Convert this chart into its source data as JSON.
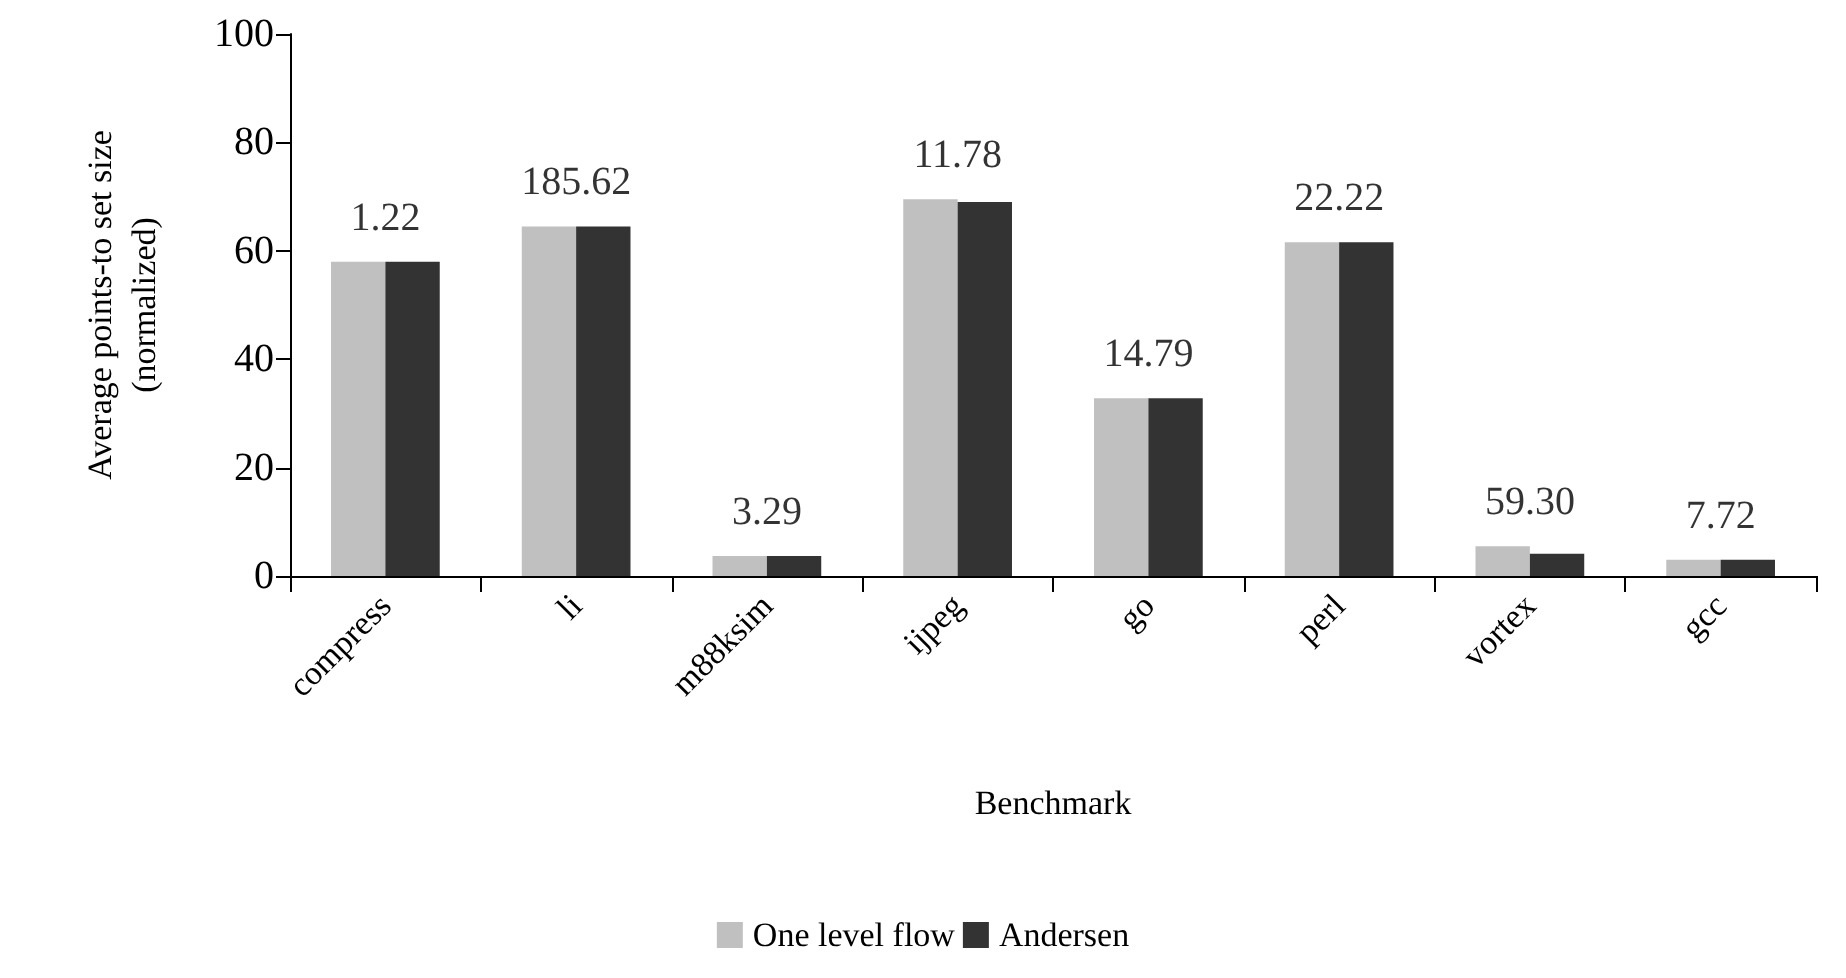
{
  "chart_data": {
    "type": "bar",
    "xlabel": "Benchmark",
    "ylabel": "Average points-to set size\n(normalized)",
    "categories": [
      "compress",
      "li",
      "m88ksim",
      "ijpeg",
      "go",
      "perl",
      "vortex",
      "gcc"
    ],
    "series": [
      {
        "name": "One level flow",
        "color": "#c0c0c0",
        "values": [
          58,
          64.5,
          3.7,
          69.5,
          32.8,
          61.6,
          5.5,
          3
        ]
      },
      {
        "name": "Andersen",
        "color": "#333333",
        "values": [
          58,
          64.5,
          3.7,
          69,
          32.8,
          61.6,
          4.1,
          3
        ]
      }
    ],
    "annotations": [
      "1.22",
      "185.62",
      "3.29",
      "11.78",
      "14.79",
      "22.22",
      "59.30",
      "7.72"
    ],
    "ylim": [
      0,
      100
    ],
    "yticks": [
      0,
      20,
      40,
      60,
      80,
      100
    ],
    "grid": false,
    "legend": "bottom"
  }
}
